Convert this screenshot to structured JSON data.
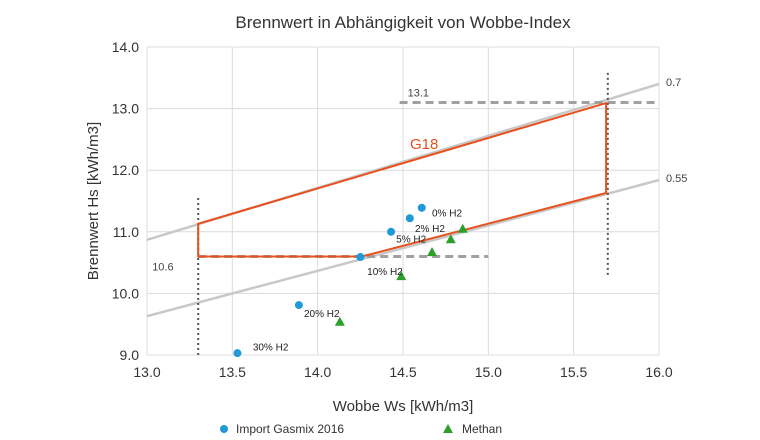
{
  "chart_data": {
    "type": "scatter",
    "title": "Brennwert in Abhängigkeit von Wobbe-Index",
    "xlabel": "Wobbe Ws [kWh/m3]",
    "ylabel": "Brennwert Hs [kWh/m3]",
    "xlim": [
      13.0,
      16.0
    ],
    "ylim": [
      9.0,
      14.0
    ],
    "xticks": [
      "13.0",
      "13.5",
      "14.0",
      "14.5",
      "15.0",
      "15.5",
      "16.0"
    ],
    "yticks": [
      "9.0",
      "10.0",
      "11.0",
      "12.0",
      "13.0",
      "14.0"
    ],
    "grid": true,
    "legend_position": "bottom",
    "series": [
      {
        "name": "Import Gasmix 2016",
        "marker": "circle",
        "color": "#1f9ad6",
        "points": [
          [
            14.61,
            11.39
          ],
          [
            14.54,
            11.22
          ],
          [
            14.43,
            11.0
          ],
          [
            14.25,
            10.59
          ],
          [
            13.89,
            9.81
          ],
          [
            13.53,
            9.03
          ]
        ]
      },
      {
        "name": "Methan",
        "marker": "triangle",
        "color": "#2ca02c",
        "points": [
          [
            14.85,
            11.05
          ],
          [
            14.78,
            10.88
          ],
          [
            14.67,
            10.67
          ],
          [
            14.49,
            10.28
          ],
          [
            14.13,
            9.54
          ]
        ]
      }
    ],
    "point_labels": [
      {
        "text": "0% H2",
        "x": 14.67,
        "y": 11.25
      },
      {
        "text": "2% H2",
        "x": 14.57,
        "y": 11.0
      },
      {
        "text": "5% H2",
        "x": 14.46,
        "y": 10.83
      },
      {
        "text": "10% H2",
        "x": 14.29,
        "y": 10.3
      },
      {
        "text": "20% H2",
        "x": 13.92,
        "y": 9.62
      },
      {
        "text": "30% H2",
        "x": 13.62,
        "y": 9.07
      }
    ],
    "reference_lines": [
      {
        "label": "0.7",
        "type": "solid",
        "color": "#c8c8c8",
        "from": [
          13.0,
          10.87
        ],
        "to": [
          16.0,
          13.4
        ]
      },
      {
        "label": "0.55",
        "type": "solid",
        "color": "#c8c8c8",
        "from": [
          13.0,
          9.63
        ],
        "to": [
          16.0,
          11.84
        ]
      },
      {
        "label": "10.6",
        "type": "dashed",
        "color": "#a0a0a0",
        "from": [
          13.3,
          10.6
        ],
        "to": [
          15.0,
          10.6
        ]
      },
      {
        "label": "13.1",
        "type": "dashed",
        "color": "#a0a0a0",
        "from": [
          14.48,
          13.1
        ],
        "to": [
          16.0,
          13.1
        ]
      },
      {
        "label": "",
        "type": "dotted",
        "color": "#555555",
        "from": [
          13.3,
          9.0
        ],
        "to": [
          13.3,
          11.55
        ]
      },
      {
        "label": "",
        "type": "dotted",
        "color": "#555555",
        "from": [
          15.7,
          10.3
        ],
        "to": [
          15.7,
          13.62
        ]
      }
    ],
    "region": {
      "label": "G18",
      "color": "#e8501e",
      "polygon": [
        [
          13.3,
          11.13
        ],
        [
          13.3,
          10.6
        ],
        [
          14.26,
          10.6
        ],
        [
          15.69,
          11.63
        ],
        [
          15.69,
          13.09
        ]
      ]
    }
  }
}
